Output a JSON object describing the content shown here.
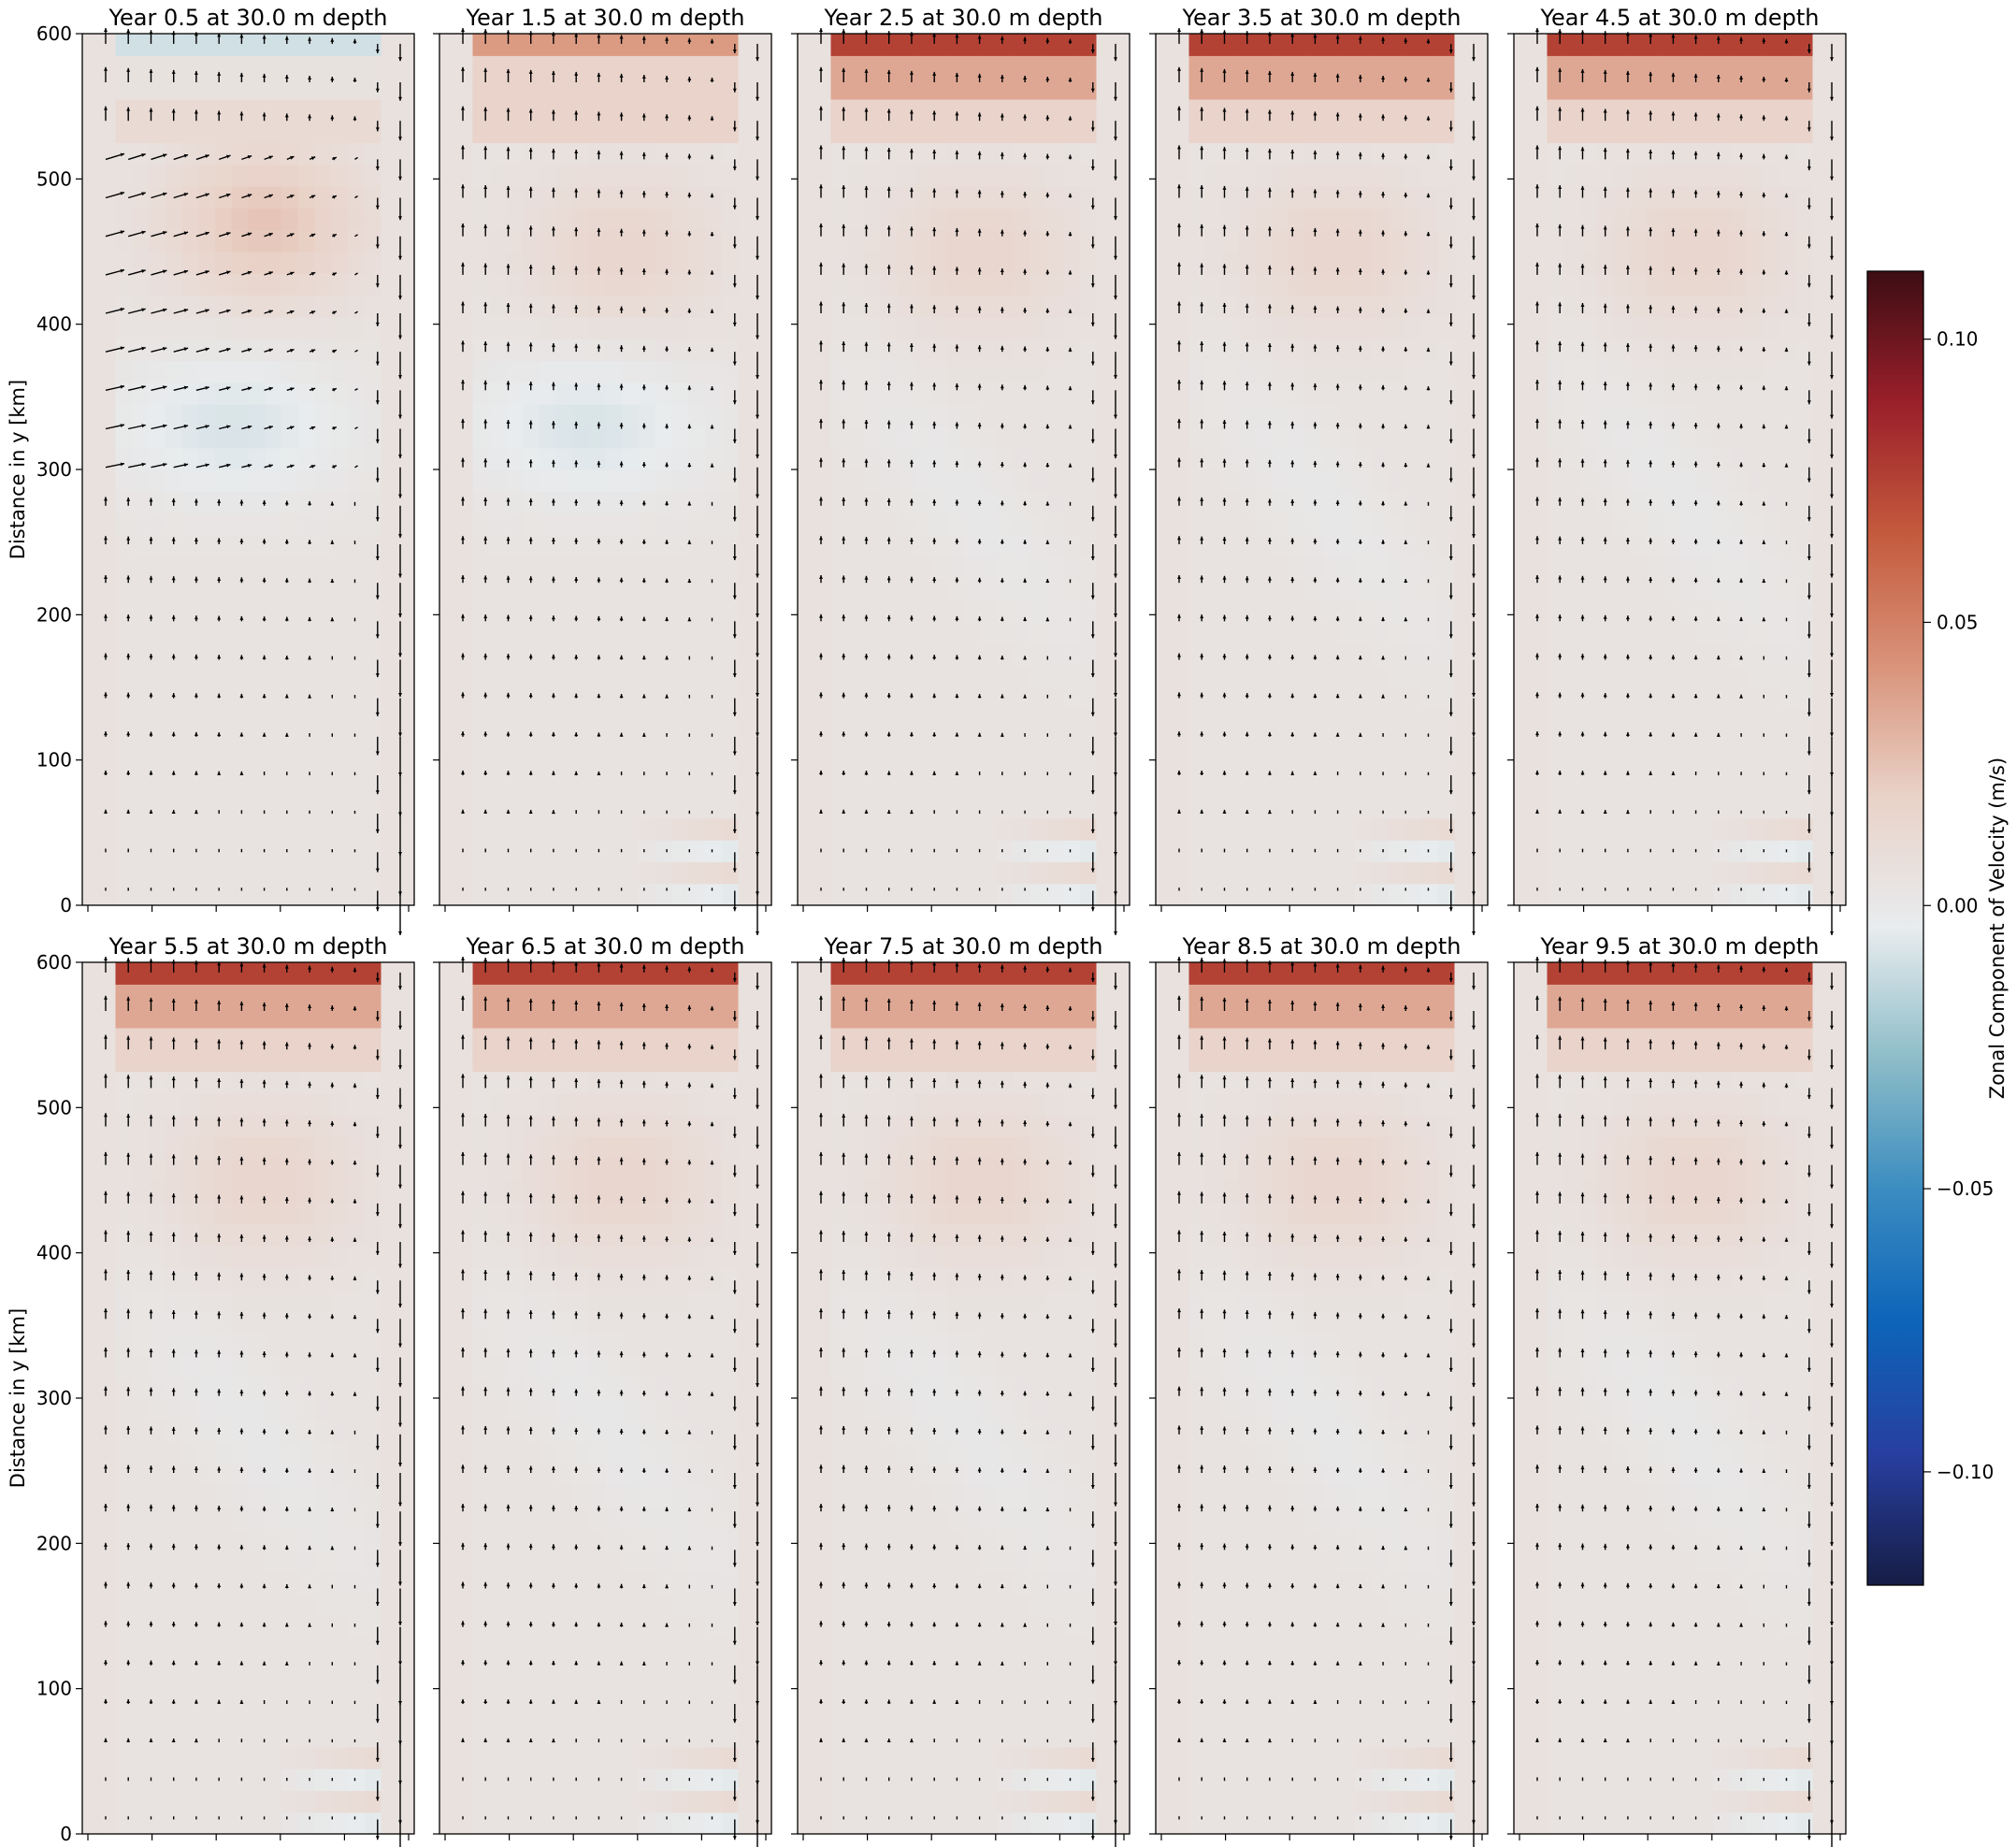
{
  "chart_data": {
    "type": "heatmap",
    "variable": "Zonal Component of Velocity (m/s)",
    "colormap": "diverging blue-white-red (cmocean balance)",
    "color_scale": {
      "label": "Zonal Component of Velocity (m/s)",
      "vmin": -0.12,
      "vmax": 0.112,
      "ticks": [
        -0.1,
        -0.05,
        0.0,
        0.05,
        0.1
      ],
      "tick_labels": [
        "−0.10",
        "−0.05",
        "0.00",
        "0.05",
        "0.10"
      ],
      "stops": [
        "#161d45",
        "#283fa0",
        "#0d64b9",
        "#3a8cc0",
        "#8dbcc8",
        "#e8ecee",
        "#e9d2c8",
        "#d9937a",
        "#c45a3d",
        "#9a1f2a",
        "#3d0d14"
      ]
    },
    "ylabel": "Distance in y [km]",
    "ylim": [
      0,
      600
    ],
    "yticks": [
      0,
      100,
      200,
      300,
      400,
      500,
      600
    ],
    "grid": false,
    "layout": "2 rows x 5 columns, shared y axis, single colorbar on right",
    "panels": [
      {
        "title": "Year 0.5 at 30.0 m depth",
        "year": 0.5,
        "depth_m": 30.0,
        "row": 0,
        "col": 0
      },
      {
        "title": "Year 1.5 at 30.0 m depth",
        "year": 1.5,
        "depth_m": 30.0,
        "row": 0,
        "col": 1
      },
      {
        "title": "Year 2.5 at 30.0 m depth",
        "year": 2.5,
        "depth_m": 30.0,
        "row": 0,
        "col": 2
      },
      {
        "title": "Year 3.5 at 30.0 m depth",
        "year": 3.5,
        "depth_m": 30.0,
        "row": 0,
        "col": 3
      },
      {
        "title": "Year 4.5 at 30.0 m depth",
        "year": 4.5,
        "depth_m": 30.0,
        "row": 0,
        "col": 4
      },
      {
        "title": "Year 5.5 at 30.0 m depth",
        "year": 5.5,
        "depth_m": 30.0,
        "row": 1,
        "col": 0
      },
      {
        "title": "Year 6.5 at 30.0 m depth",
        "year": 6.5,
        "depth_m": 30.0,
        "row": 1,
        "col": 1
      },
      {
        "title": "Year 7.5 at 30.0 m depth",
        "year": 7.5,
        "depth_m": 30.0,
        "row": 1,
        "col": 2
      },
      {
        "title": "Year 8.5 at 30.0 m depth",
        "year": 8.5,
        "depth_m": 30.0,
        "row": 1,
        "col": 3
      },
      {
        "title": "Year 9.5 at 30.0 m depth",
        "year": 9.5,
        "depth_m": 30.0,
        "row": 1,
        "col": 4
      }
    ]
  }
}
